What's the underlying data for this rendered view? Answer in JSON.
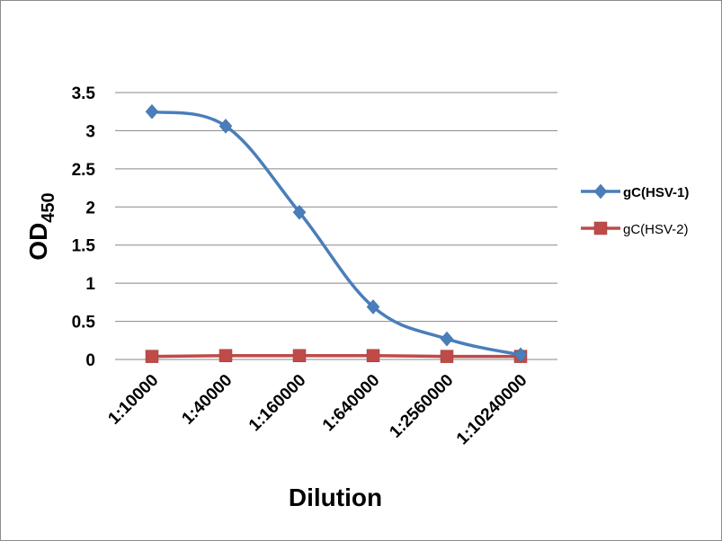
{
  "chart_data": {
    "type": "line",
    "categories": [
      "1:10000",
      "1:40000",
      "1:160000",
      "1:640000",
      "1:2560000",
      "1:10240000"
    ],
    "series": [
      {
        "name": "gC(HSV-1)",
        "values": [
          3.25,
          3.06,
          1.93,
          0.69,
          0.27,
          0.06
        ],
        "color": "#4a7ebb",
        "marker": "diamond",
        "legend_bold": true
      },
      {
        "name": "gC(HSV-2)",
        "values": [
          0.04,
          0.05,
          0.05,
          0.05,
          0.04,
          0.04
        ],
        "color": "#be4b48",
        "marker": "square",
        "legend_bold": false
      }
    ],
    "xlabel": "Dilution",
    "ylabel": {
      "main": "OD",
      "sub": "450"
    },
    "ylim": [
      0,
      3.5
    ],
    "yticks": [
      "0",
      "0.5",
      "1",
      "1.5",
      "2",
      "2.5",
      "3",
      "3.5"
    ],
    "grid": true,
    "legend_position": "right",
    "smooth": true
  }
}
